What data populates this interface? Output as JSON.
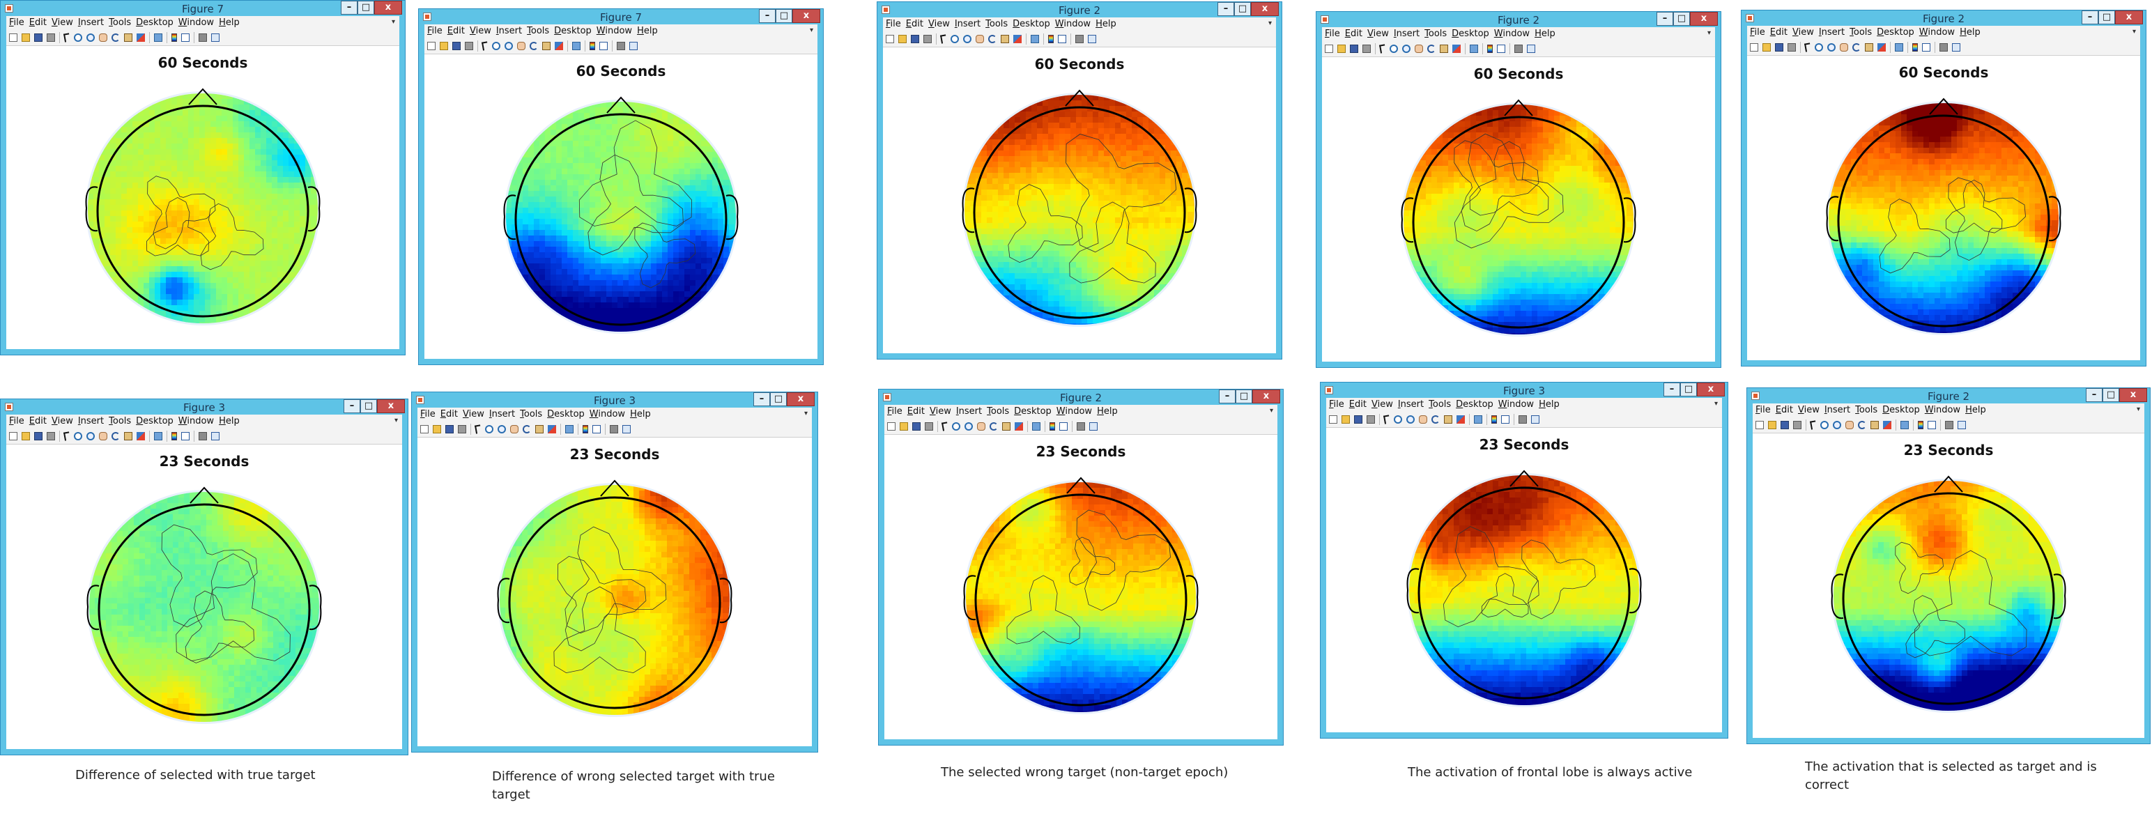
{
  "menu": [
    {
      "u": "F",
      "rest": "ile"
    },
    {
      "u": "E",
      "rest": "dit"
    },
    {
      "u": "V",
      "rest": "iew"
    },
    {
      "u": "I",
      "rest": "nsert"
    },
    {
      "u": "T",
      "rest": "ools"
    },
    {
      "u": "D",
      "rest": "esktop"
    },
    {
      "u": "W",
      "rest": "indow"
    },
    {
      "u": "H",
      "rest": "elp"
    }
  ],
  "window_buttons": {
    "minimize": "–",
    "maximize": "□",
    "close": "x"
  },
  "menu_overflow_glyph": "▾",
  "toolbar_icons": [
    "new-file-icon",
    "open-folder-icon",
    "save-icon",
    "print-icon",
    "|",
    "pointer-icon",
    "zoom-in-icon",
    "zoom-out-icon",
    "pan-icon",
    "rotate-3d-icon",
    "data-cursor-icon",
    "brush-icon",
    "|",
    "link-icon",
    "|",
    "colorbar-icon",
    "legend-icon",
    "|",
    "hide-tools-icon",
    "dock-icon"
  ],
  "colors": {
    "frame": "#5ec3e6",
    "close_button": "#c7504d",
    "topomap_colormap": [
      "#00008f",
      "#0050ff",
      "#00dfff",
      "#8fff70",
      "#ffef00",
      "#ff5f00",
      "#7f0000"
    ]
  },
  "figures": [
    {
      "id": "f1",
      "title": "Figure 7",
      "ax_title": "60 Seconds",
      "base": 0.55,
      "seed": 11
    },
    {
      "id": "f2",
      "title": "Figure 7",
      "ax_title": "60 Seconds",
      "base": 0.5,
      "seed": 23,
      "lowBottom": true
    },
    {
      "id": "f3",
      "title": "Figure 2",
      "ax_title": "60 Seconds",
      "base": 0.68,
      "seed": 37,
      "frontHigh": true,
      "lowBottom": true
    },
    {
      "id": "f4",
      "title": "Figure 2",
      "ax_title": "60 Seconds",
      "base": 0.68,
      "seed": 41,
      "frontHigh": true,
      "lowBottom": true
    },
    {
      "id": "f5",
      "title": "Figure 2",
      "ax_title": "60 Seconds",
      "base": 0.68,
      "seed": 53,
      "frontHigh": true,
      "lowBottom": true
    },
    {
      "id": "f6",
      "title": "Figure 3",
      "ax_title": "23 Seconds",
      "base": 0.45,
      "seed": 61,
      "leftHigh": true
    },
    {
      "id": "f7",
      "title": "Figure 3",
      "ax_title": "23 Seconds",
      "base": 0.62,
      "seed": 73,
      "rightHigh": true,
      "lowLeft": true
    },
    {
      "id": "f8",
      "title": "Figure 2",
      "ax_title": "23 Seconds",
      "base": 0.65,
      "seed": 83,
      "frontHigh": true,
      "lowBottom": true
    },
    {
      "id": "f9",
      "title": "Figure 3",
      "ax_title": "23 Seconds",
      "base": 0.62,
      "seed": 97,
      "frontHigh": true,
      "lowBottom": true
    },
    {
      "id": "f10",
      "title": "Figure 2",
      "ax_title": "23 Seconds",
      "base": 0.55,
      "seed": 101,
      "frontHigh": true,
      "lowBottom": true
    }
  ],
  "captions": [
    {
      "id": "c1",
      "text": "Difference of selected with true target"
    },
    {
      "id": "c2",
      "text": "Difference of wrong selected target with true target"
    },
    {
      "id": "c3",
      "text": "The selected wrong target (non-target epoch)"
    },
    {
      "id": "c4",
      "text": "The activation of frontal lobe is always active"
    },
    {
      "id": "c5",
      "text": "The activation that is selected as target and is correct"
    }
  ]
}
